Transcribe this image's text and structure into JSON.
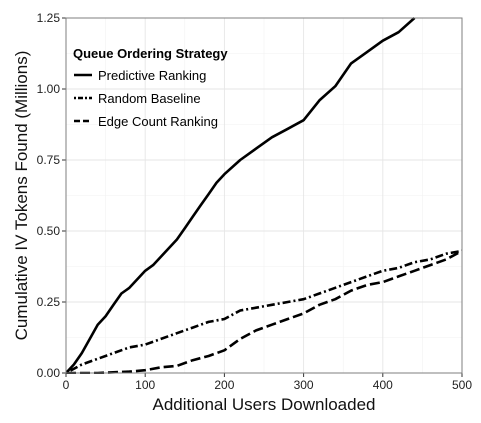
{
  "chart_data": {
    "type": "line",
    "title": "",
    "xlabel": "Additional Users Downloaded",
    "ylabel": "Cumulative IV Tokens Found (Millions)",
    "xlim": [
      0,
      500
    ],
    "ylim": [
      0,
      1.25
    ],
    "x_ticks": [
      0,
      100,
      200,
      300,
      400,
      500
    ],
    "x_tick_labels": [
      "0",
      "100",
      "200",
      "300",
      "400",
      "500"
    ],
    "y_ticks": [
      0,
      0.25,
      0.5,
      0.75,
      1.0,
      1.25
    ],
    "y_tick_labels": [
      "0.00",
      "0.25",
      "0.50",
      "0.75",
      "1.00",
      "1.25"
    ],
    "grid": true,
    "legend": {
      "title": "Queue Ordering Strategy",
      "position": "top-left"
    },
    "series": [
      {
        "name": "Predictive Ranking",
        "style": "solid",
        "x": [
          0,
          10,
          20,
          30,
          40,
          50,
          60,
          70,
          80,
          90,
          100,
          110,
          120,
          130,
          140,
          150,
          160,
          170,
          180,
          190,
          200,
          220,
          240,
          260,
          280,
          300,
          320,
          340,
          360,
          380,
          400,
          420,
          440
        ],
        "y": [
          0,
          0.03,
          0.07,
          0.12,
          0.17,
          0.2,
          0.24,
          0.28,
          0.3,
          0.33,
          0.36,
          0.38,
          0.41,
          0.44,
          0.47,
          0.51,
          0.55,
          0.59,
          0.63,
          0.67,
          0.7,
          0.75,
          0.79,
          0.83,
          0.86,
          0.89,
          0.96,
          1.01,
          1.09,
          1.13,
          1.17,
          1.2,
          1.25
        ]
      },
      {
        "name": "Random Baseline",
        "style": "dotdash",
        "x": [
          0,
          20,
          40,
          60,
          80,
          100,
          120,
          140,
          160,
          180,
          200,
          220,
          240,
          260,
          280,
          300,
          320,
          340,
          360,
          380,
          400,
          420,
          440,
          460,
          480,
          500
        ],
        "y": [
          0,
          0.03,
          0.05,
          0.07,
          0.09,
          0.1,
          0.12,
          0.14,
          0.16,
          0.18,
          0.19,
          0.22,
          0.23,
          0.24,
          0.25,
          0.26,
          0.28,
          0.3,
          0.32,
          0.34,
          0.36,
          0.37,
          0.39,
          0.4,
          0.42,
          0.43
        ]
      },
      {
        "name": "Edge Count Ranking",
        "style": "longdash",
        "x": [
          0,
          40,
          80,
          100,
          120,
          140,
          160,
          180,
          200,
          220,
          240,
          260,
          280,
          300,
          320,
          340,
          360,
          380,
          400,
          420,
          440,
          460,
          480,
          500
        ],
        "y": [
          0,
          0,
          0.005,
          0.01,
          0.02,
          0.025,
          0.045,
          0.06,
          0.08,
          0.12,
          0.15,
          0.17,
          0.19,
          0.21,
          0.24,
          0.26,
          0.29,
          0.31,
          0.32,
          0.34,
          0.36,
          0.38,
          0.4,
          0.43
        ]
      }
    ]
  }
}
